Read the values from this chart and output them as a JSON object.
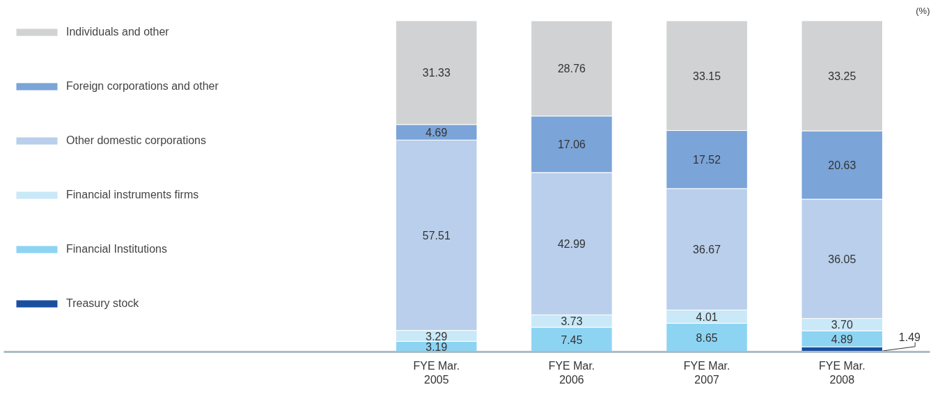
{
  "chart_data": {
    "type": "bar",
    "stacked": true,
    "legend": "left",
    "grid": false,
    "tick_labels": "x",
    "ylabel": "(%)",
    "ylim": [
      0,
      100.5
    ],
    "categories": [
      "FYE Mar.\n2005",
      "FYE Mar.\n2006",
      "FYE Mar.\n2007",
      "FYE Mar.\n2008"
    ],
    "series": [
      {
        "name": "Treasury stock",
        "color": "#1a4fa0",
        "values": [
          null,
          null,
          null,
          1.49
        ],
        "value_labels": [
          null,
          null,
          null,
          "1.49"
        ]
      },
      {
        "name": "Financial Institutions",
        "color": "#8dd4f3",
        "values": [
          3.19,
          7.45,
          8.65,
          4.89
        ],
        "value_labels": [
          "3.19",
          "7.45",
          "8.65",
          "4.89"
        ]
      },
      {
        "name": "Financial instruments firms",
        "color": "#c9e8f8",
        "values": [
          3.29,
          3.73,
          4.01,
          3.7
        ],
        "value_labels": [
          "3.29",
          "3.73",
          "4.01",
          "3.70"
        ]
      },
      {
        "name": "Other domestic corporations",
        "color": "#b9cfeb",
        "values": [
          57.51,
          42.99,
          36.67,
          36.05
        ],
        "value_labels": [
          "57.51",
          "42.99",
          "36.67",
          "36.05"
        ]
      },
      {
        "name": "Foreign corporations and other",
        "color": "#7ba4d8",
        "values": [
          4.69,
          17.06,
          17.52,
          20.63
        ],
        "value_labels": [
          "4.69",
          "17.06",
          "17.52",
          "20.63"
        ]
      },
      {
        "name": "Individuals and other",
        "color": "#d1d2d4",
        "values": [
          31.33,
          28.76,
          33.15,
          33.25
        ],
        "value_labels": [
          "31.33",
          "28.76",
          "33.15",
          "33.25"
        ]
      }
    ]
  }
}
